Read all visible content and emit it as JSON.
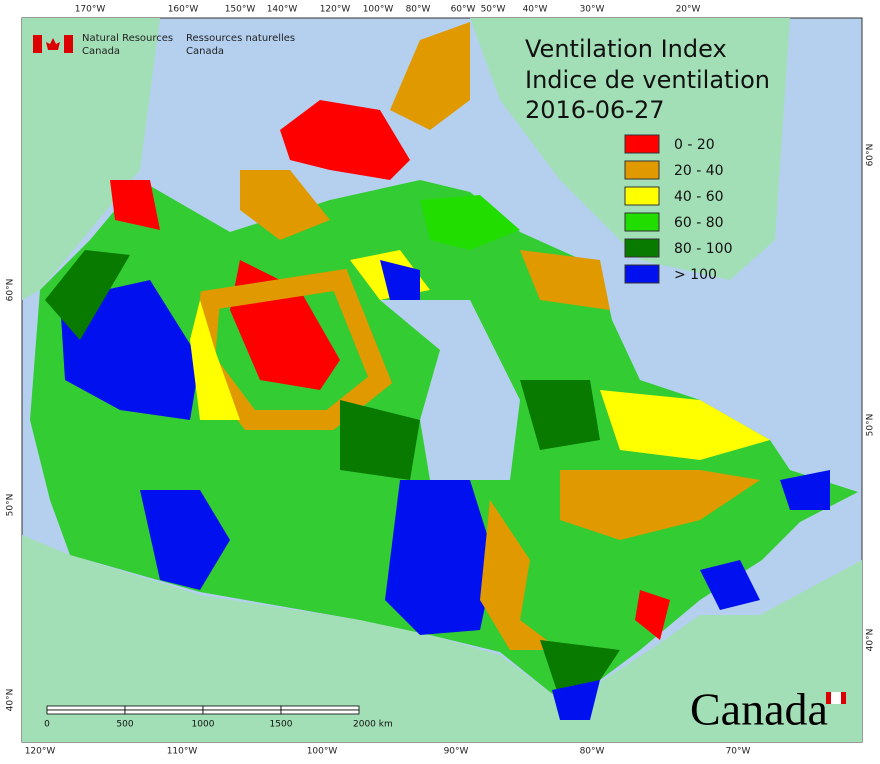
{
  "agency": {
    "en_line1": "Natural Resources",
    "en_line2": "Canada",
    "fr_line1": "Ressources naturelles",
    "fr_line2": "Canada"
  },
  "title": {
    "line1": "Ventilation Index",
    "line2": "Indice de ventilation",
    "date": "2016-06-27"
  },
  "legend": [
    {
      "label": "0 - 20",
      "color": "#ff0000"
    },
    {
      "label": "20 - 40",
      "color": "#e09a00"
    },
    {
      "label": "40 - 60",
      "color": "#ffff00"
    },
    {
      "label": "60 - 80",
      "color": "#22dd00"
    },
    {
      "label": "80 - 100",
      "color": "#087a00"
    },
    {
      "label": "> 100",
      "color": "#0010ee"
    }
  ],
  "graticule": {
    "top": [
      "170°W",
      "160°W",
      "150°W",
      "140°W",
      "120°W",
      "100°W",
      "80°W",
      "60°W",
      "50°W",
      "40°W",
      "30°W",
      "20°W"
    ],
    "bottom": [
      "120°W",
      "110°W",
      "100°W",
      "90°W",
      "80°W",
      "70°W"
    ],
    "left": [
      "60°N",
      "50°N",
      "40°N"
    ],
    "right": [
      "60°N",
      "50°N",
      "40°N"
    ]
  },
  "scale_bar": {
    "labels": [
      "0",
      "500",
      "1000",
      "1500",
      "2000 km"
    ]
  },
  "wordmark": "Canada"
}
